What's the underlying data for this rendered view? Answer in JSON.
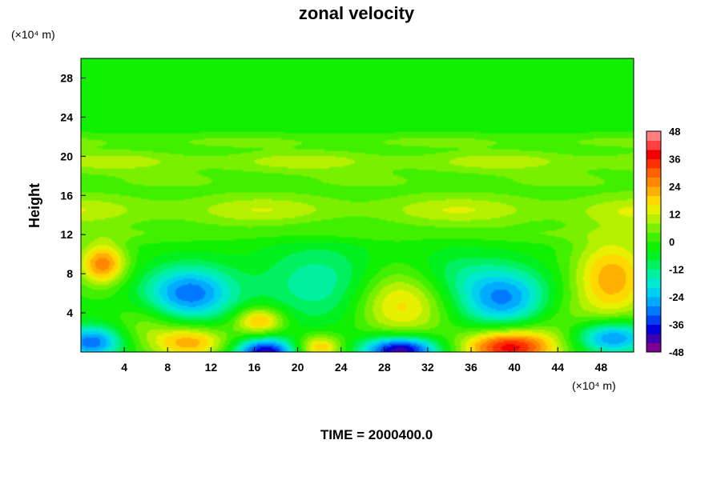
{
  "chart_data": {
    "type": "heatmap",
    "title": "zonal velocity",
    "ylabel": "Height",
    "y_unit": "(×10⁴ m)",
    "x_unit": "(×10⁴ m)",
    "footer": "TIME = 2000400.0",
    "x_ticks": [
      "4",
      "8",
      "12",
      "16",
      "20",
      "24",
      "28",
      "32",
      "36",
      "40",
      "44",
      "48"
    ],
    "y_ticks": [
      "4",
      "8",
      "12",
      "16",
      "20",
      "24",
      "28"
    ],
    "xlim": [
      0,
      51
    ],
    "ylim": [
      0,
      30
    ],
    "colorbar": {
      "ticks": [
        "48",
        "36",
        "24",
        "12",
        "0",
        "-12",
        "-24",
        "-36",
        "-48"
      ],
      "range": [
        -48,
        48
      ],
      "step": 4,
      "colors": [
        "#7a0096",
        "#3d00b0",
        "#0000d8",
        "#0040f0",
        "#0078ff",
        "#00aaff",
        "#00d0f0",
        "#00e8d0",
        "#00f0a0",
        "#00f060",
        "#00f020",
        "#10f000",
        "#40f000",
        "#78f000",
        "#b4f000",
        "#e6f000",
        "#ffd800",
        "#ffb000",
        "#ff8800",
        "#ff6000",
        "#ff3000",
        "#f00000",
        "#ff4040",
        "#ff8080"
      ]
    },
    "field": {
      "description_note": "",
      "background": -1,
      "blobs": [
        {
          "x": 10,
          "y": 6,
          "sx": 3.0,
          "sy": 2.0,
          "v": -30
        },
        {
          "x": 1,
          "y": 1,
          "sx": 2.0,
          "sy": 1.2,
          "v": -30
        },
        {
          "x": 2,
          "y": 9,
          "sx": 1.5,
          "sy": 1.5,
          "v": 28
        },
        {
          "x": 10,
          "y": 1,
          "sx": 2.5,
          "sy": 1.2,
          "v": 24
        },
        {
          "x": 16.5,
          "y": 3.2,
          "sx": 1.6,
          "sy": 1.0,
          "v": 24
        },
        {
          "x": 17,
          "y": 0,
          "sx": 2.0,
          "sy": 1.0,
          "v": -40
        },
        {
          "x": 22,
          "y": 0.5,
          "sx": 1.5,
          "sy": 0.9,
          "v": 22
        },
        {
          "x": 22,
          "y": 7,
          "sx": 4.0,
          "sy": 3.0,
          "v": -14
        },
        {
          "x": 29.5,
          "y": 5,
          "sx": 3.0,
          "sy": 2.5,
          "v": 20
        },
        {
          "x": 29.5,
          "y": 0.2,
          "sx": 2.5,
          "sy": 1.0,
          "v": -44
        },
        {
          "x": 39,
          "y": 5.5,
          "sx": 3.0,
          "sy": 2.2,
          "v": -28
        },
        {
          "x": 39.5,
          "y": 0.5,
          "sx": 3.0,
          "sy": 1.3,
          "v": 40
        },
        {
          "x": 49,
          "y": 7.5,
          "sx": 2.5,
          "sy": 3.0,
          "v": 24
        },
        {
          "x": 49,
          "y": 1.5,
          "sx": 2.5,
          "sy": 1.2,
          "v": -30
        },
        {
          "x": 34,
          "y": 8,
          "sx": 3.0,
          "sy": 2.0,
          "v": -8
        },
        {
          "x": 6,
          "y": 3,
          "sx": 2.0,
          "sy": 1.5,
          "v": 8
        },
        {
          "x": 44,
          "y": 3,
          "sx": 2.5,
          "sy": 2.0,
          "v": 6
        }
      ],
      "bands": [
        {
          "y": 14.5,
          "sy": 1.2,
          "v": 10
        },
        {
          "y": 19.5,
          "sy": 0.8,
          "v": 9
        },
        {
          "y": 17.5,
          "sy": 0.8,
          "v": 4
        },
        {
          "y": 21.5,
          "sy": 0.5,
          "v": 5
        },
        {
          "y": 12.0,
          "sy": 0.6,
          "v": 3
        }
      ]
    }
  }
}
